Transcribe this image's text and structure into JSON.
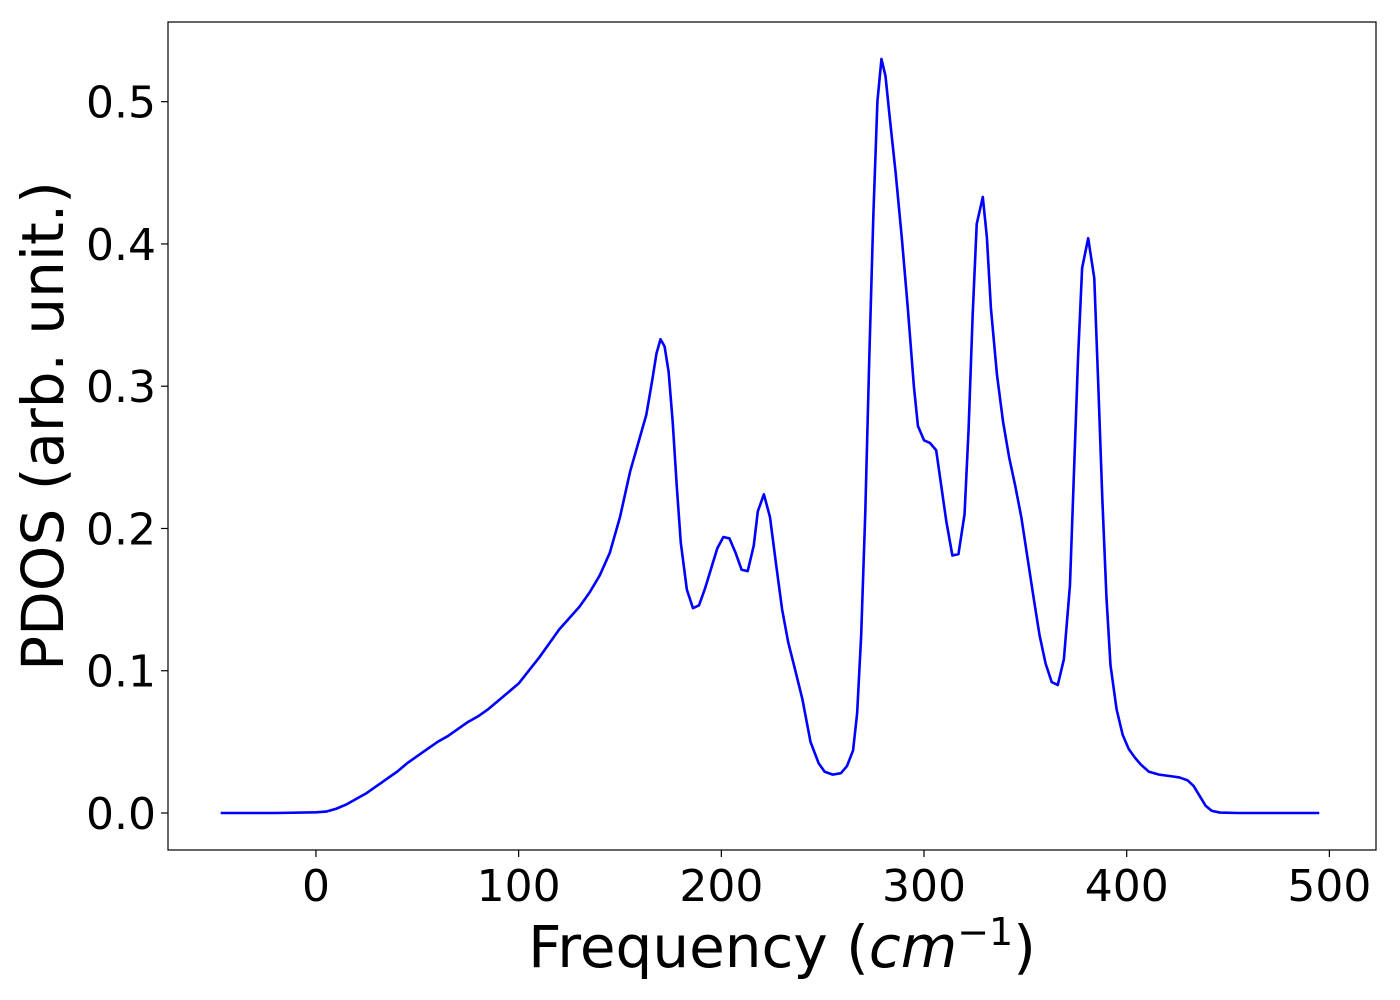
{
  "chart_data": {
    "type": "line",
    "title": "",
    "xlabel": "Frequency (cm⁻¹)",
    "xlabel_text": "Frequency (",
    "xlabel_unit": "cm",
    "xlabel_exp": "−1",
    "xlabel_close": ")",
    "ylabel": "PDOS (arb. unit.)",
    "xlim": [
      -73,
      523
    ],
    "ylim": [
      -0.026,
      0.556
    ],
    "xticks": [
      0,
      100,
      200,
      300,
      400,
      500
    ],
    "yticks": [
      0.0,
      0.1,
      0.2,
      0.3,
      0.4,
      0.5
    ],
    "ytick_labels": [
      "0.0",
      "0.1",
      "0.2",
      "0.3",
      "0.4",
      "0.5"
    ],
    "grid": false,
    "legend": "none",
    "series": [
      {
        "color": "#0000ff",
        "points": [
          [
            -47,
            0.0
          ],
          [
            -20,
            0.0
          ],
          [
            0,
            0.0005
          ],
          [
            5,
            0.001
          ],
          [
            10,
            0.003
          ],
          [
            15,
            0.006
          ],
          [
            20,
            0.01
          ],
          [
            25,
            0.014
          ],
          [
            30,
            0.019
          ],
          [
            35,
            0.024
          ],
          [
            40,
            0.029
          ],
          [
            45,
            0.035
          ],
          [
            50,
            0.04
          ],
          [
            55,
            0.045
          ],
          [
            60,
            0.05
          ],
          [
            65,
            0.054
          ],
          [
            70,
            0.059
          ],
          [
            75,
            0.064
          ],
          [
            80,
            0.068
          ],
          [
            85,
            0.073
          ],
          [
            90,
            0.079
          ],
          [
            95,
            0.085
          ],
          [
            100,
            0.091
          ],
          [
            105,
            0.1
          ],
          [
            110,
            0.109
          ],
          [
            115,
            0.119
          ],
          [
            120,
            0.129
          ],
          [
            125,
            0.137
          ],
          [
            130,
            0.145
          ],
          [
            135,
            0.155
          ],
          [
            140,
            0.167
          ],
          [
            145,
            0.183
          ],
          [
            150,
            0.208
          ],
          [
            155,
            0.24
          ],
          [
            160,
            0.265
          ],
          [
            163,
            0.28
          ],
          [
            166,
            0.305
          ],
          [
            168,
            0.323
          ],
          [
            170,
            0.333
          ],
          [
            172,
            0.328
          ],
          [
            174,
            0.31
          ],
          [
            176,
            0.275
          ],
          [
            178,
            0.23
          ],
          [
            180,
            0.19
          ],
          [
            183,
            0.157
          ],
          [
            186,
            0.144
          ],
          [
            189,
            0.146
          ],
          [
            192,
            0.158
          ],
          [
            195,
            0.172
          ],
          [
            198,
            0.186
          ],
          [
            201,
            0.194
          ],
          [
            204,
            0.193
          ],
          [
            207,
            0.183
          ],
          [
            210,
            0.171
          ],
          [
            213,
            0.17
          ],
          [
            216,
            0.188
          ],
          [
            218,
            0.212
          ],
          [
            221,
            0.224
          ],
          [
            224,
            0.208
          ],
          [
            227,
            0.175
          ],
          [
            230,
            0.143
          ],
          [
            233,
            0.12
          ],
          [
            236,
            0.103
          ],
          [
            240,
            0.08
          ],
          [
            244,
            0.05
          ],
          [
            248,
            0.035
          ],
          [
            251,
            0.029
          ],
          [
            255,
            0.027
          ],
          [
            259,
            0.028
          ],
          [
            262,
            0.033
          ],
          [
            265,
            0.044
          ],
          [
            267,
            0.07
          ],
          [
            269,
            0.125
          ],
          [
            271,
            0.21
          ],
          [
            273,
            0.32
          ],
          [
            275,
            0.42
          ],
          [
            277,
            0.5
          ],
          [
            279,
            0.53
          ],
          [
            281,
            0.518
          ],
          [
            283,
            0.49
          ],
          [
            286,
            0.45
          ],
          [
            289,
            0.405
          ],
          [
            292,
            0.355
          ],
          [
            295,
            0.3
          ],
          [
            297,
            0.272
          ],
          [
            300,
            0.262
          ],
          [
            303,
            0.26
          ],
          [
            306,
            0.255
          ],
          [
            308,
            0.235
          ],
          [
            311,
            0.205
          ],
          [
            314,
            0.181
          ],
          [
            317,
            0.182
          ],
          [
            320,
            0.21
          ],
          [
            322,
            0.27
          ],
          [
            324,
            0.35
          ],
          [
            326,
            0.414
          ],
          [
            329,
            0.433
          ],
          [
            331,
            0.405
          ],
          [
            333,
            0.355
          ],
          [
            336,
            0.308
          ],
          [
            339,
            0.275
          ],
          [
            342,
            0.25
          ],
          [
            345,
            0.23
          ],
          [
            348,
            0.208
          ],
          [
            351,
            0.18
          ],
          [
            354,
            0.152
          ],
          [
            357,
            0.125
          ],
          [
            360,
            0.105
          ],
          [
            363,
            0.092
          ],
          [
            366,
            0.09
          ],
          [
            369,
            0.108
          ],
          [
            372,
            0.16
          ],
          [
            374,
            0.24
          ],
          [
            376,
            0.32
          ],
          [
            378,
            0.383
          ],
          [
            381,
            0.404
          ],
          [
            384,
            0.376
          ],
          [
            386,
            0.3
          ],
          [
            388,
            0.22
          ],
          [
            390,
            0.152
          ],
          [
            392,
            0.104
          ],
          [
            395,
            0.073
          ],
          [
            398,
            0.055
          ],
          [
            401,
            0.045
          ],
          [
            404,
            0.039
          ],
          [
            407,
            0.034
          ],
          [
            411,
            0.029
          ],
          [
            416,
            0.027
          ],
          [
            421,
            0.026
          ],
          [
            426,
            0.025
          ],
          [
            430,
            0.023
          ],
          [
            433,
            0.019
          ],
          [
            436,
            0.012
          ],
          [
            439,
            0.005
          ],
          [
            442,
            0.0015
          ],
          [
            446,
            0.0003
          ],
          [
            455,
            0.0
          ],
          [
            495,
            0.0
          ]
        ]
      }
    ]
  }
}
